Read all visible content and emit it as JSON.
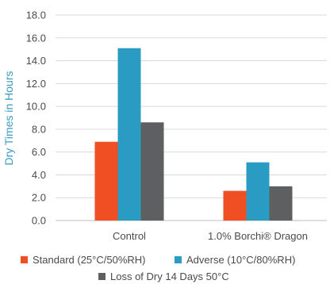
{
  "chart_data": {
    "type": "bar",
    "title": "",
    "xlabel": "",
    "ylabel": "Dry Times in Hours",
    "ylim": [
      0,
      18
    ],
    "yticks": [
      "0.0",
      "2.0",
      "4.0",
      "6.0",
      "8.0",
      "10.0",
      "12.0",
      "14.0",
      "16.0",
      "18.0"
    ],
    "categories": [
      "Control",
      "1.0% Borchi® Dragon"
    ],
    "series": [
      {
        "name": "Standard (25°C/50%RH)",
        "color": "#f04e23",
        "values": [
          6.9,
          2.6
        ]
      },
      {
        "name": "Adverse (10°C/80%RH)",
        "color": "#2a9cc4",
        "values": [
          15.1,
          5.1
        ]
      },
      {
        "name": "Loss of Dry 14 Days 50°C",
        "color": "#5d5f61",
        "values": [
          8.6,
          3.0
        ]
      }
    ],
    "grid": "horizontal",
    "legend_position": "bottom"
  }
}
